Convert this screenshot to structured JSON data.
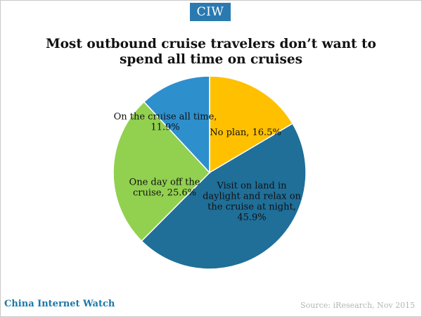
{
  "brand": {
    "logo_text": "CIW",
    "logo_color": "#2a7ab0",
    "footer_left": "China Internet Watch",
    "footer_right": "Source: iResearch, Nov 2015"
  },
  "chart_data": {
    "type": "pie",
    "title": "Most outbound cruise travelers don’t want to spend all time on cruises",
    "slices": [
      {
        "name": "No plan",
        "value": 16.5,
        "color": "#ffc000",
        "label_lines": [
          "No plan, 16.5%"
        ]
      },
      {
        "name": "Visit on land in daylight and relax on the cruise at night",
        "value": 45.9,
        "color": "#1f6f99",
        "label_lines": [
          "Visit on land in",
          "daylight and relax on",
          "the cruise at night,",
          "45.9%"
        ]
      },
      {
        "name": "One day off the cruise",
        "value": 25.6,
        "color": "#92d050",
        "label_lines": [
          "One day off the",
          "cruise, 25.6%"
        ]
      },
      {
        "name": "On the cruise all time",
        "value": 11.9,
        "color": "#2e8fcd",
        "label_lines": [
          "On the cruise all time,",
          "11.9%"
        ]
      }
    ],
    "start": "top",
    "direction": "clockwise"
  }
}
